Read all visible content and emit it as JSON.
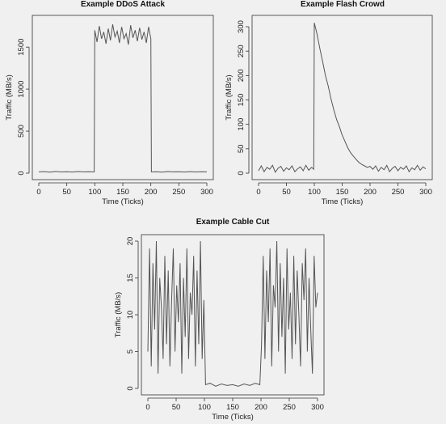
{
  "chart_data": [
    {
      "type": "line",
      "title": "Example DDoS Attack",
      "xlabel": "Time (Ticks)",
      "ylabel": "Traffic (MB/s)",
      "xlim": [
        0,
        300
      ],
      "ylim": [
        0,
        1800
      ],
      "xticks": [
        "0",
        "50",
        "100",
        "150",
        "200",
        "250",
        "300"
      ],
      "yticks": [
        "0",
        "500",
        "1000",
        "1500"
      ],
      "series": [
        {
          "x": [
            0,
            10,
            20,
            30,
            40,
            50,
            60,
            70,
            80,
            90,
            99,
            100,
            104,
            108,
            112,
            116,
            120,
            124,
            128,
            132,
            136,
            140,
            144,
            148,
            152,
            156,
            160,
            164,
            168,
            172,
            176,
            180,
            184,
            188,
            192,
            196,
            200,
            201,
            210,
            220,
            230,
            240,
            250,
            260,
            270,
            280,
            290,
            300
          ],
          "y": [
            15,
            18,
            12,
            20,
            14,
            17,
            13,
            19,
            15,
            16,
            14,
            1700,
            1560,
            1750,
            1600,
            1680,
            1540,
            1720,
            1580,
            1770,
            1620,
            1690,
            1550,
            1740,
            1600,
            1660,
            1530,
            1760,
            1610,
            1700,
            1570,
            1730,
            1590,
            1680,
            1550,
            1740,
            1600,
            14,
            16,
            12,
            19,
            15,
            17,
            13,
            18,
            14,
            16,
            15
          ]
        }
      ]
    },
    {
      "type": "line",
      "title": "Example Flash Crowd",
      "xlabel": "Time (Ticks)",
      "ylabel": "Traffic (MB/s)",
      "xlim": [
        0,
        300
      ],
      "ylim": [
        0,
        310
      ],
      "xticks": [
        "0",
        "50",
        "100",
        "150",
        "200",
        "250",
        "300"
      ],
      "yticks": [
        "0",
        "50",
        "100",
        "150",
        "200",
        "250",
        "300"
      ],
      "series": [
        {
          "x": [
            0,
            5,
            10,
            15,
            20,
            25,
            30,
            35,
            40,
            45,
            50,
            55,
            60,
            65,
            70,
            75,
            80,
            85,
            90,
            95,
            99,
            100,
            105,
            110,
            115,
            120,
            125,
            130,
            135,
            140,
            145,
            150,
            155,
            160,
            165,
            170,
            175,
            180,
            185,
            190,
            195,
            200,
            205,
            210,
            215,
            220,
            225,
            230,
            235,
            240,
            245,
            250,
            255,
            260,
            265,
            270,
            275,
            280,
            285,
            290,
            295,
            300
          ],
          "y": [
            5,
            15,
            3,
            12,
            8,
            16,
            2,
            10,
            14,
            4,
            11,
            7,
            15,
            3,
            9,
            13,
            5,
            16,
            6,
            12,
            8,
            308,
            285,
            255,
            228,
            200,
            178,
            152,
            130,
            110,
            95,
            78,
            65,
            52,
            42,
            35,
            28,
            22,
            18,
            15,
            12,
            14,
            8,
            15,
            4,
            12,
            7,
            16,
            3,
            10,
            14,
            5,
            12,
            8,
            15,
            3,
            11,
            7,
            16,
            6,
            13,
            9
          ]
        }
      ]
    },
    {
      "type": "line",
      "title": "Example Cable Cut",
      "xlabel": "Time (Ticks)",
      "ylabel": "Traffic (MB/s)",
      "xlim": [
        0,
        300
      ],
      "ylim": [
        0,
        20
      ],
      "xticks": [
        "0",
        "50",
        "100",
        "150",
        "200",
        "250",
        "300"
      ],
      "yticks": [
        "0",
        "5",
        "10",
        "15",
        "20"
      ],
      "series": [
        {
          "x": [
            0,
            3,
            6,
            9,
            12,
            15,
            18,
            21,
            24,
            27,
            30,
            33,
            36,
            39,
            42,
            45,
            48,
            51,
            54,
            57,
            60,
            63,
            66,
            69,
            72,
            75,
            78,
            81,
            84,
            87,
            90,
            93,
            96,
            99,
            102,
            110,
            120,
            130,
            140,
            150,
            160,
            170,
            180,
            190,
            198,
            201,
            204,
            207,
            210,
            213,
            216,
            219,
            222,
            225,
            228,
            231,
            234,
            237,
            240,
            243,
            246,
            249,
            252,
            255,
            258,
            261,
            264,
            267,
            270,
            273,
            276,
            279,
            282,
            285,
            288,
            291,
            294,
            297,
            300
          ],
          "y": [
            5,
            19,
            3,
            17,
            8,
            20,
            2,
            15,
            11,
            4,
            18,
            6,
            16,
            3,
            12,
            19,
            5,
            14,
            9,
            17,
            2,
            15,
            7,
            19,
            4,
            13,
            10,
            18,
            3,
            16,
            6,
            20,
            4,
            12,
            0.5,
            0.7,
            0.3,
            0.6,
            0.4,
            0.5,
            0.3,
            0.6,
            0.4,
            0.7,
            0.5,
            6,
            18,
            4,
            16,
            9,
            19,
            3,
            14,
            11,
            20,
            5,
            17,
            7,
            15,
            2,
            19,
            8,
            13,
            4,
            18,
            6,
            16,
            10,
            3,
            17,
            12,
            19,
            5,
            15,
            8,
            2,
            18,
            11,
            13
          ]
        }
      ]
    }
  ]
}
